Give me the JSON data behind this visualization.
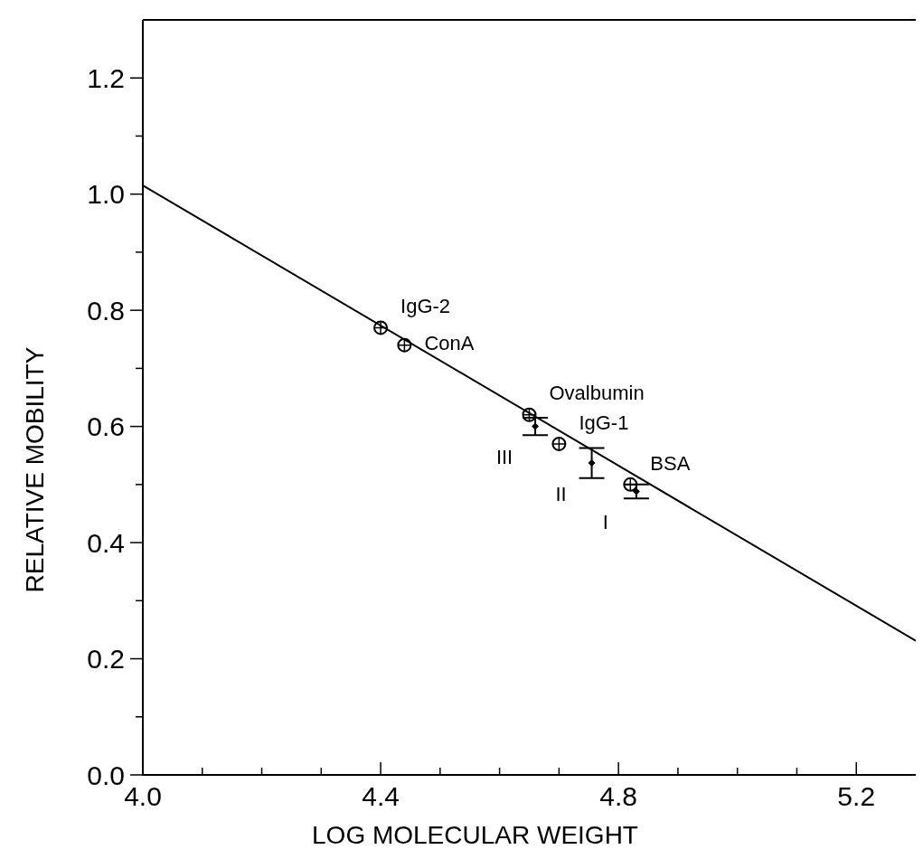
{
  "chart_data": {
    "type": "scatter",
    "xlabel": "LOG MOLECULAR WEIGHT",
    "ylabel": "RELATIVE MOBILITY",
    "xlim": [
      4.0,
      5.3
    ],
    "ylim": [
      0,
      1.3
    ],
    "xticks": [
      {
        "value": 4.0,
        "label": "4.0"
      },
      {
        "value": 4.1,
        "label": null
      },
      {
        "value": 4.2,
        "label": null
      },
      {
        "value": 4.3,
        "label": null
      },
      4.4,
      {
        "value": 4.5,
        "label": null
      },
      {
        "value": 4.6,
        "label": null
      },
      {
        "value": 4.7,
        "label": null
      },
      4.8,
      {
        "value": 4.9,
        "label": null
      },
      {
        "value": 5.0,
        "label": null
      },
      {
        "value": 5.1,
        "label": null
      },
      5.2
    ],
    "yticks": [
      {
        "value": 0,
        "label": "0.0"
      },
      {
        "value": 0.1,
        "label": null
      },
      0.2,
      {
        "value": 0.3,
        "label": null
      },
      0.4,
      {
        "value": 0.5,
        "label": null
      },
      0.6,
      {
        "value": 0.7,
        "label": null
      },
      0.8,
      {
        "value": 0.9,
        "label": null
      },
      {
        "value": 1.0,
        "label": "1.0"
      },
      {
        "value": 1.1,
        "label": null
      },
      1.2
    ],
    "grid": false,
    "series": [
      {
        "type": "line",
        "color": "#000000",
        "x": [
          4.0,
          5.3
        ],
        "values": [
          1.015,
          0.231
        ],
        "marker": "none",
        "line_style": "solid"
      },
      {
        "color": "#000000",
        "x": [
          4.4,
          4.44,
          4.65,
          4.7,
          4.82
        ],
        "values": [
          0.77,
          0.74,
          0.62,
          0.57,
          0.5
        ],
        "marker": "circle"
      },
      {
        "color": "#000000",
        "x": [
          4.66,
          4.755,
          4.83
        ],
        "values": [
          0.6,
          0.537,
          0.488
        ],
        "errors": [
          0.015,
          0.026,
          0.012
        ],
        "marker": "diamond"
      }
    ],
    "annotations": [
      {
        "text": "IgG-2",
        "x": 4.4,
        "y": 0.77
      },
      {
        "text": "ConA",
        "x": 4.44,
        "y": 0.74
      },
      {
        "text": "Ovalbumin",
        "x": 4.65,
        "y": 0.62
      },
      {
        "text": "IgG-1",
        "x": 4.7,
        "y": 0.57
      },
      {
        "text": "BSA",
        "x": 4.82,
        "y": 0.5
      },
      {
        "text": "III",
        "x": 4.66,
        "y": 0.6
      },
      {
        "text": "II",
        "x": 4.755,
        "y": 0.537
      },
      {
        "text": "I",
        "x": 4.83,
        "y": 0.488
      }
    ]
  }
}
